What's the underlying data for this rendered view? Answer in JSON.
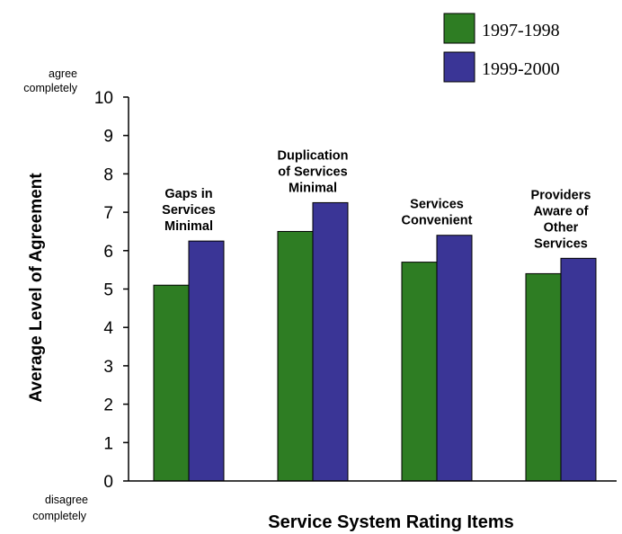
{
  "chart_data": {
    "type": "bar",
    "title": "",
    "xlabel": "Service System Rating Items",
    "ylabel": "Average Level of Agreement",
    "ylim": [
      0,
      10
    ],
    "yticks": [
      "0",
      "1",
      "2",
      "3",
      "4",
      "5",
      "6",
      "7",
      "8",
      "9",
      "10"
    ],
    "y_top_label": [
      "agree",
      "completely"
    ],
    "y_bottom_label": [
      "disagree",
      "completely"
    ],
    "categories": [
      [
        "Gaps in",
        "Services",
        "Minimal"
      ],
      [
        "Duplication",
        "of Services",
        "Minimal"
      ],
      [
        "Services",
        "Convenient"
      ],
      [
        "Providers",
        "Aware of",
        "Other",
        "Services"
      ]
    ],
    "series": [
      {
        "name": "1997-1998",
        "color": "#2e7d23",
        "values": [
          5.1,
          6.5,
          5.7,
          5.4
        ]
      },
      {
        "name": "1999-2000",
        "color": "#3a3596",
        "values": [
          6.25,
          7.25,
          6.4,
          5.8
        ]
      }
    ],
    "legend_position": "top-right",
    "grid": false
  }
}
